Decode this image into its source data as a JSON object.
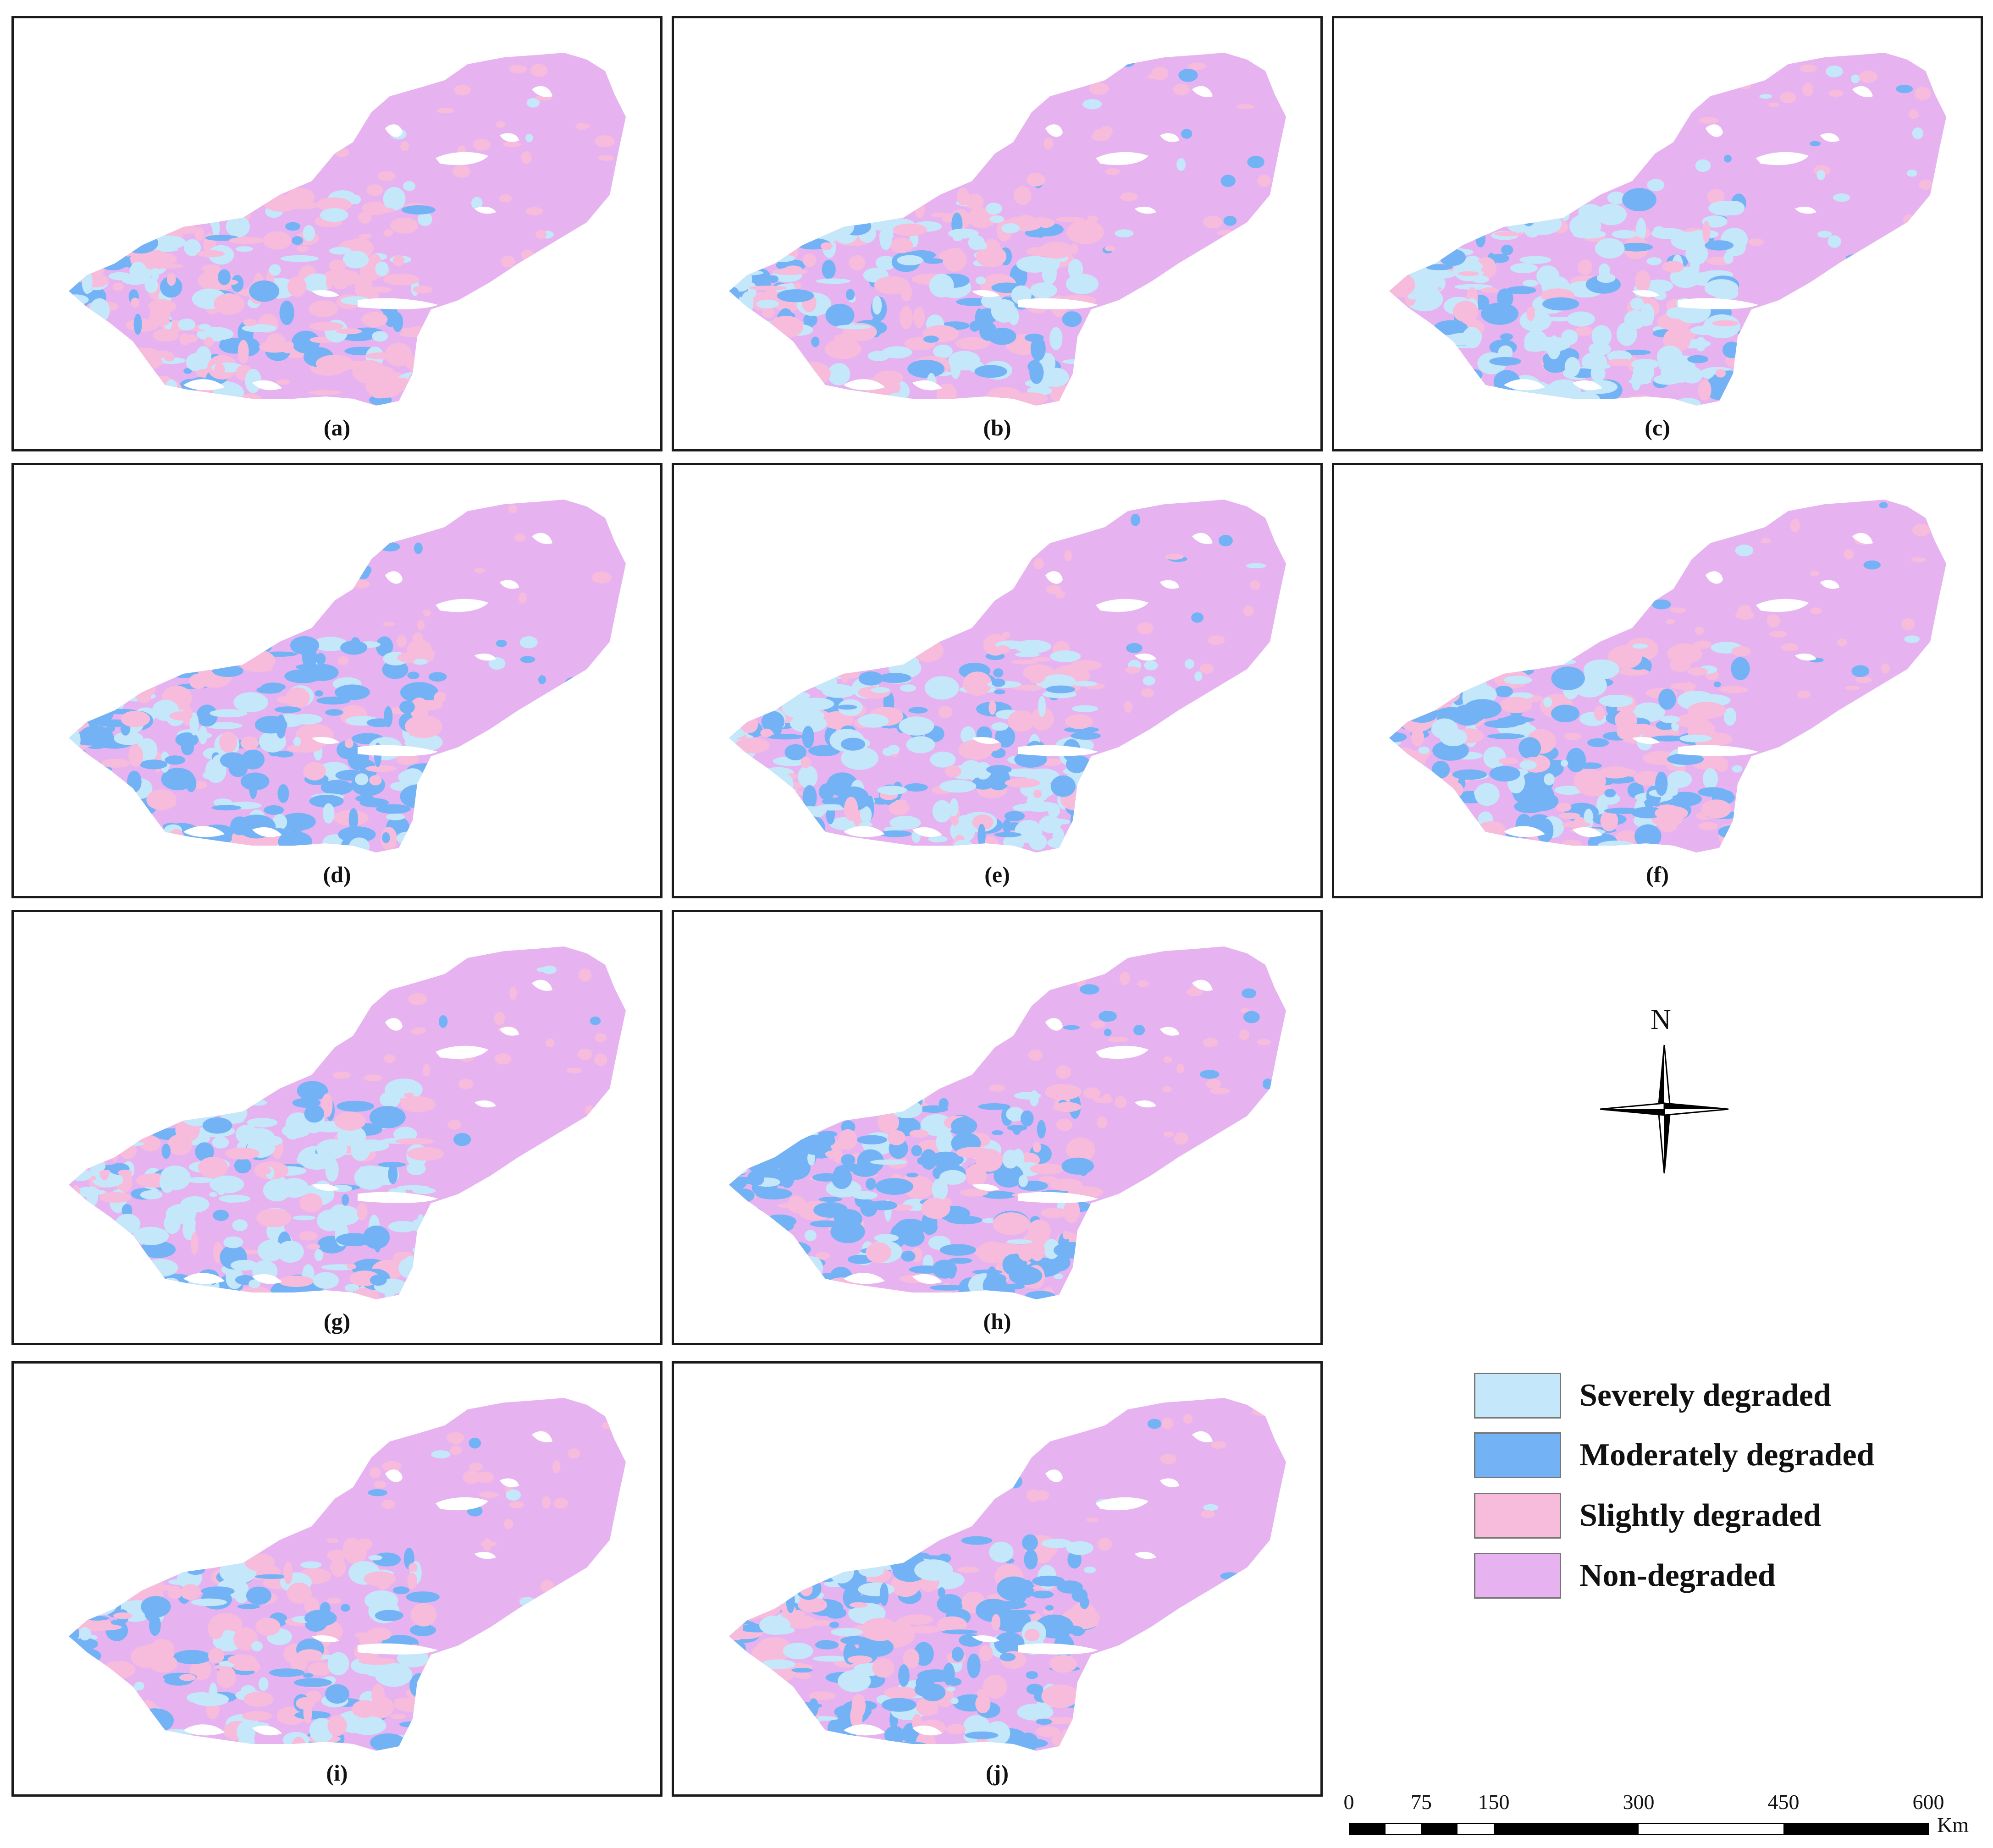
{
  "panels": [
    {
      "label": "(a)",
      "scheme": [
        0.18,
        0.1,
        0.32
      ]
    },
    {
      "label": "(b)",
      "scheme": [
        0.26,
        0.14,
        0.2
      ]
    },
    {
      "label": "(c)",
      "scheme": [
        0.3,
        0.16,
        0.14
      ]
    },
    {
      "label": "(d)",
      "scheme": [
        0.16,
        0.34,
        0.14
      ]
    },
    {
      "label": "(e)",
      "scheme": [
        0.26,
        0.24,
        0.14
      ]
    },
    {
      "label": "(f)",
      "scheme": [
        0.2,
        0.22,
        0.2
      ]
    },
    {
      "label": "(g)",
      "scheme": [
        0.34,
        0.14,
        0.14
      ]
    },
    {
      "label": "(h)",
      "scheme": [
        0.12,
        0.34,
        0.2
      ]
    },
    {
      "label": "(i)",
      "scheme": [
        0.18,
        0.16,
        0.26
      ]
    },
    {
      "label": "(j)",
      "scheme": [
        0.12,
        0.3,
        0.26
      ]
    }
  ],
  "legend": [
    {
      "label": "Severely degraded",
      "color": "#c5e7fa"
    },
    {
      "label": "Moderately degraded",
      "color": "#73b2f5"
    },
    {
      "label": "Slightly degraded",
      "color": "#f7bcdc"
    },
    {
      "label": "Non-degraded",
      "color": "#e6b3f0"
    }
  ],
  "north_arrow": {
    "label": "N"
  },
  "scale_bar": {
    "ticks": [
      "0",
      "75",
      "150",
      "300",
      "450",
      "600"
    ],
    "unit": "Km"
  }
}
